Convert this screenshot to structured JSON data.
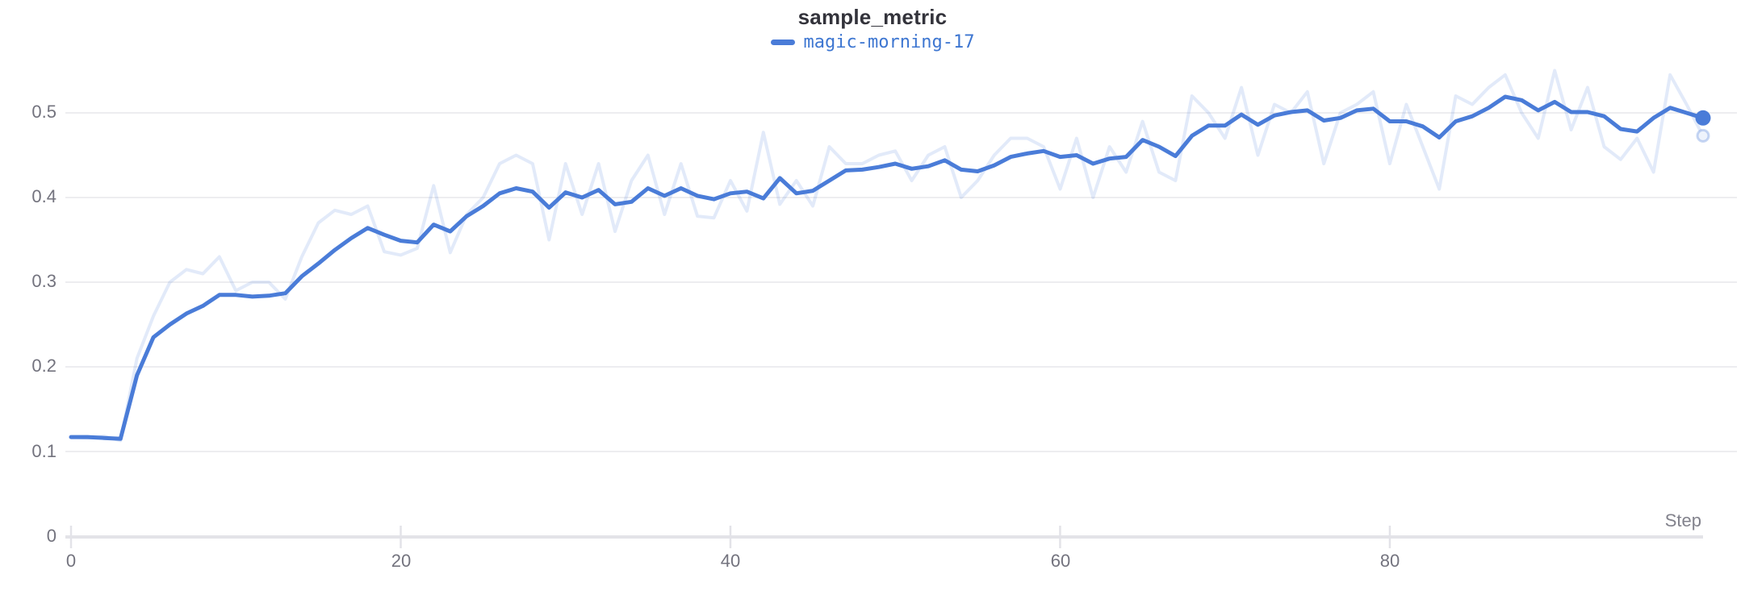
{
  "header": {
    "title": "sample_metric"
  },
  "legend": {
    "label": "magic-morning-17",
    "dash_color": "#4a7cd8"
  },
  "axis": {
    "step_label": "Step"
  },
  "colors": {
    "line": "#4a7cd8",
    "line_ghost": "rgba(74,124,216,0.16)",
    "grid": "#ededf0",
    "axis_line": "#e3e3e8",
    "tick_text": "#73737e",
    "title_text": "#33333b",
    "legend_text": "#3d76d1"
  },
  "chart_data": {
    "type": "line",
    "title": "sample_metric",
    "xlabel": "Step",
    "ylabel": "",
    "xlim": [
      0,
      99
    ],
    "ylim": [
      0,
      0.55
    ],
    "grid": true,
    "legend_position": "top-center",
    "x_tick_values": [
      0,
      20,
      40,
      60,
      80
    ],
    "x_tick_labels": [
      "0",
      "20",
      "40",
      "60",
      "80"
    ],
    "y_tick_values": [
      0.5,
      0.4,
      0.3,
      0.2,
      0.1,
      0
    ],
    "y_tick_labels": [
      "0.5",
      "0.4",
      "0.3",
      "0.2",
      "0.1",
      "0"
    ],
    "x": [
      0,
      1,
      2,
      3,
      4,
      5,
      6,
      7,
      8,
      9,
      10,
      11,
      12,
      13,
      14,
      15,
      16,
      17,
      18,
      19,
      20,
      21,
      22,
      23,
      24,
      25,
      26,
      27,
      28,
      29,
      30,
      31,
      32,
      33,
      34,
      35,
      36,
      37,
      38,
      39,
      40,
      41,
      42,
      43,
      44,
      45,
      46,
      47,
      48,
      49,
      50,
      51,
      52,
      53,
      54,
      55,
      56,
      57,
      58,
      59,
      60,
      61,
      62,
      63,
      64,
      65,
      66,
      67,
      68,
      69,
      70,
      71,
      72,
      73,
      74,
      75,
      76,
      77,
      78,
      79,
      80,
      81,
      82,
      83,
      84,
      85,
      86,
      87,
      88,
      89,
      90,
      91,
      92,
      93,
      94,
      95,
      96,
      97,
      98,
      99
    ],
    "series": [
      {
        "name": "magic-morning-17",
        "role": "smoothed",
        "color": "#4a7cd8",
        "line_width": 5,
        "end_dot": true,
        "values": [
          0.117,
          0.117,
          0.116,
          0.115,
          0.19,
          0.235,
          0.25,
          0.263,
          0.272,
          0.285,
          0.285,
          0.283,
          0.284,
          0.287,
          0.307,
          0.322,
          0.338,
          0.352,
          0.364,
          0.356,
          0.349,
          0.347,
          0.368,
          0.36,
          0.378,
          0.39,
          0.405,
          0.411,
          0.407,
          0.388,
          0.406,
          0.4,
          0.409,
          0.392,
          0.395,
          0.411,
          0.402,
          0.411,
          0.402,
          0.398,
          0.405,
          0.407,
          0.399,
          0.423,
          0.405,
          0.408,
          0.42,
          0.432,
          0.433,
          0.436,
          0.44,
          0.434,
          0.437,
          0.444,
          0.433,
          0.431,
          0.438,
          0.448,
          0.452,
          0.455,
          0.448,
          0.45,
          0.44,
          0.446,
          0.448,
          0.468,
          0.46,
          0.449,
          0.473,
          0.485,
          0.485,
          0.498,
          0.486,
          0.497,
          0.501,
          0.503,
          0.491,
          0.494,
          0.503,
          0.505,
          0.49,
          0.49,
          0.484,
          0.471,
          0.49,
          0.496,
          0.506,
          0.519,
          0.515,
          0.503,
          0.513,
          0.501,
          0.501,
          0.496,
          0.481,
          0.478,
          0.494,
          0.506,
          0.5,
          0.494
        ]
      },
      {
        "name": "magic-morning-17 (original)",
        "role": "raw",
        "color": "rgba(74,124,216,0.16)",
        "line_width": 4,
        "end_dot": true,
        "values": [
          0.117,
          0.116,
          0.118,
          0.113,
          0.21,
          0.26,
          0.3,
          0.315,
          0.31,
          0.33,
          0.29,
          0.3,
          0.3,
          0.28,
          0.33,
          0.37,
          0.385,
          0.38,
          0.39,
          0.336,
          0.332,
          0.34,
          0.414,
          0.335,
          0.38,
          0.4,
          0.44,
          0.45,
          0.44,
          0.35,
          0.44,
          0.38,
          0.44,
          0.36,
          0.42,
          0.45,
          0.38,
          0.44,
          0.378,
          0.376,
          0.42,
          0.384,
          0.477,
          0.392,
          0.42,
          0.39,
          0.46,
          0.44,
          0.44,
          0.45,
          0.455,
          0.42,
          0.45,
          0.46,
          0.4,
          0.42,
          0.45,
          0.47,
          0.47,
          0.46,
          0.41,
          0.47,
          0.4,
          0.46,
          0.43,
          0.49,
          0.43,
          0.42,
          0.52,
          0.5,
          0.47,
          0.53,
          0.45,
          0.51,
          0.5,
          0.525,
          0.44,
          0.5,
          0.51,
          0.525,
          0.44,
          0.51,
          0.46,
          0.41,
          0.52,
          0.51,
          0.53,
          0.545,
          0.5,
          0.47,
          0.55,
          0.48,
          0.53,
          0.46,
          0.445,
          0.47,
          0.43,
          0.545,
          0.51,
          0.473
        ]
      }
    ],
    "final_values": {
      "smoothed": 0.494,
      "raw": 0.473
    }
  }
}
